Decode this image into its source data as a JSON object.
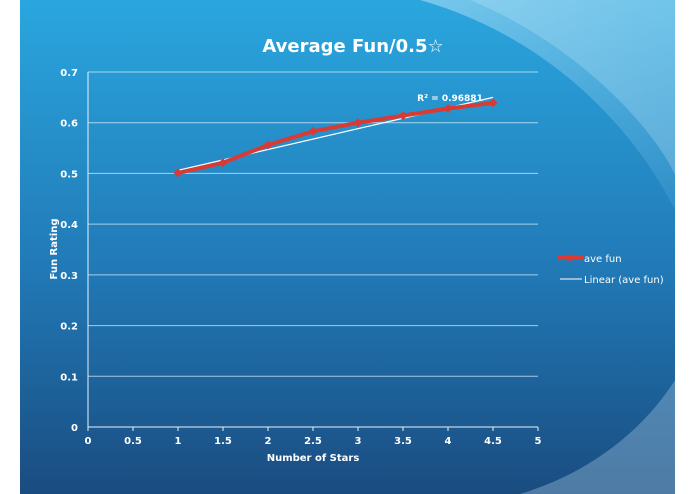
{
  "colors": {
    "background_top": "#27a3dc",
    "background_bottom": "#1b4f83",
    "series_line": "#d93a33",
    "trend_line": "#ffffff",
    "text": "#ffffff"
  },
  "chart_data": {
    "type": "line",
    "title": "Average Fun/0.5☆",
    "xlabel": "Number of Stars",
    "ylabel": "Fun Rating",
    "xlim": [
      0,
      5
    ],
    "ylim": [
      0,
      0.7
    ],
    "x_ticks": [
      "0",
      "0.5",
      "1",
      "1.5",
      "2",
      "2.5",
      "3",
      "3.5",
      "4",
      "4.5",
      "5"
    ],
    "y_ticks": [
      "0",
      "0.1",
      "0.2",
      "0.3",
      "0.4",
      "0.5",
      "0.6",
      "0.7"
    ],
    "grid": true,
    "legend_position": "right",
    "series": [
      {
        "name": "ave fun",
        "marker": "diamond",
        "x": [
          1,
          1.5,
          2,
          2.5,
          3,
          3.5,
          4,
          4.5
        ],
        "y": [
          0.501,
          0.521,
          0.556,
          0.583,
          0.6,
          0.614,
          0.628,
          0.639
        ]
      }
    ],
    "trendline": {
      "name": "Linear (ave fun)",
      "x": [
        1,
        4.5
      ],
      "y": [
        0.506,
        0.65
      ],
      "annotation": "R² = 0.96881"
    }
  }
}
